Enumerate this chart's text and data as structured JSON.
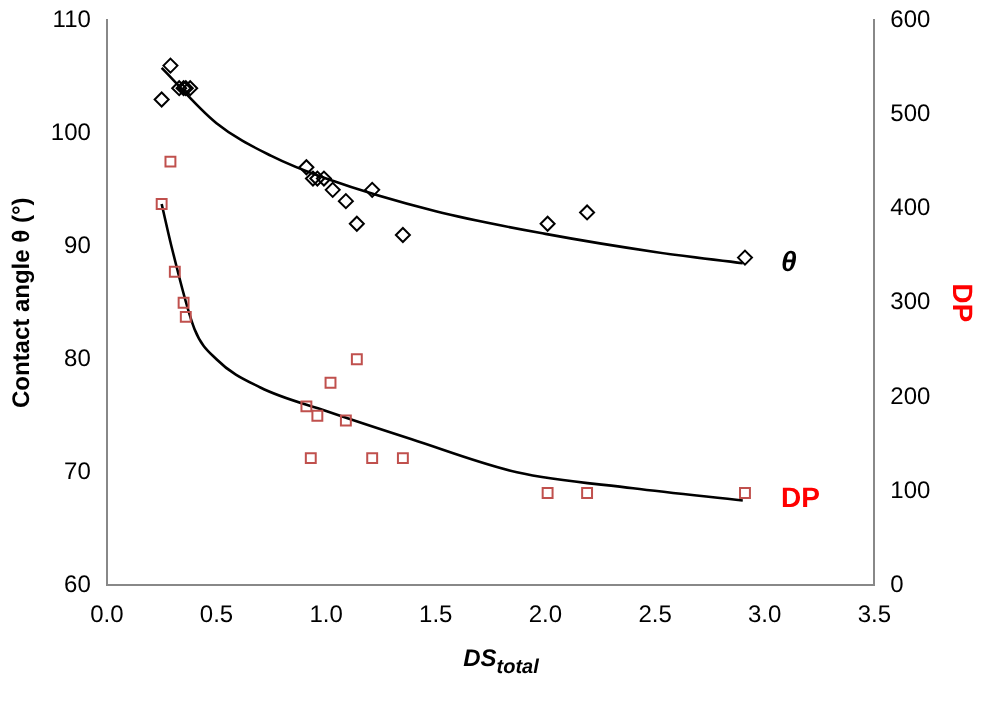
{
  "chart_data": {
    "type": "scatter",
    "xlabel": "DS$_{total}$",
    "ylabel": "Contact angle θ (°)",
    "y2label": "DP",
    "xlim": [
      0,
      3.5
    ],
    "xticks": [
      {
        "value": 0,
        "label": "0.0"
      },
      {
        "value": 0.5,
        "label": "0.5"
      },
      {
        "value": 1,
        "label": "1.0"
      },
      {
        "value": 1.5,
        "label": "1.5"
      },
      {
        "value": 2,
        "label": "2.0"
      },
      {
        "value": 2.5,
        "label": "2.5"
      },
      {
        "value": 3,
        "label": "3.0"
      },
      {
        "value": 3.5,
        "label": "3.5"
      }
    ],
    "ylim": [
      60,
      110
    ],
    "yticks": [
      60,
      70,
      80,
      90,
      100,
      110
    ],
    "y2lim": [
      0,
      600
    ],
    "y2ticks": [
      0,
      100,
      200,
      300,
      400,
      500,
      600
    ],
    "grid": false,
    "legend": false,
    "series": [
      {
        "name": "θ",
        "color": "#000000",
        "marker": "diamond",
        "x": [
          0.25,
          0.29,
          0.33,
          0.35,
          0.36,
          0.38,
          0.91,
          0.94,
          0.96,
          0.99,
          1.03,
          1.09,
          1.14,
          1.21,
          1.35,
          2.01,
          2.19,
          2.91
        ],
        "values": [
          103,
          106,
          104,
          104,
          104,
          104,
          97,
          96,
          96,
          96,
          95,
          94,
          92,
          95,
          91,
          92,
          93,
          89
        ]
      },
      {
        "name": "DP",
        "color": "#c0504d",
        "axis": "y2",
        "marker": "square",
        "x": [
          0.25,
          0.29,
          0.31,
          0.35,
          0.36,
          0.91,
          0.93,
          0.96,
          1.02,
          1.09,
          1.14,
          1.21,
          1.35,
          2.01,
          2.19,
          2.91
        ],
        "values": [
          405,
          450,
          333,
          300,
          285,
          190,
          135,
          180,
          215,
          175,
          240,
          135,
          135,
          98,
          98,
          98
        ]
      },
      {
        "type": "line",
        "color": "#000000",
        "marker": "none",
        "x": [
          0.25,
          0.5,
          0.75,
          1,
          1.5,
          2,
          2.5,
          2.9
        ],
        "values": [
          105.8,
          100.9,
          98,
          96,
          93.1,
          91.1,
          89.5,
          88.5
        ]
      },
      {
        "type": "line",
        "color": "#000000",
        "marker": "none",
        "axis": "y2",
        "x": [
          0.25,
          0.3,
          0.4,
          0.5,
          0.7,
          1,
          1.39,
          1.87,
          2.4,
          2.9
        ],
        "values": [
          405,
          355,
          272,
          240,
          210,
          185,
          155,
          120,
          103,
          90
        ]
      }
    ]
  }
}
